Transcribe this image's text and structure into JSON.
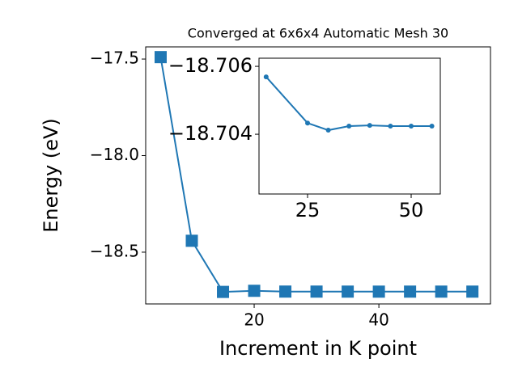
{
  "chart_data": [
    {
      "type": "line",
      "title": "Converged at 6x6x4 Automatic Mesh 30",
      "xlabel": "Increment in K point",
      "ylabel": "Energy (eV)",
      "x": [
        5,
        10,
        15,
        20,
        25,
        30,
        35,
        40,
        45,
        50,
        55
      ],
      "series": [
        {
          "name": "Energy",
          "color": "#1f77b4",
          "marker": "square",
          "values": [
            -17.49,
            -18.441,
            -18.7057,
            -18.7,
            -18.704,
            -18.7041,
            -18.7042,
            -18.7043,
            -18.7042,
            -18.7042,
            -18.7042
          ]
        }
      ],
      "xlim": [
        2.6,
        57.9
      ],
      "xticks": [
        20,
        40
      ],
      "ylim": [
        -18.768,
        -17.437
      ],
      "yticks": [
        {
          "value": -17.5,
          "label": "−17.5"
        },
        {
          "value": -18.0,
          "label": "−18.0"
        },
        {
          "value": -18.5,
          "label": "−18.5"
        }
      ]
    },
    {
      "type": "line",
      "x": [
        15,
        25,
        30,
        35,
        40,
        45,
        50,
        55
      ],
      "series": [
        {
          "name": "Energy",
          "color": "#1f77b4",
          "marker": "circle",
          "values": [
            -18.70569,
            -18.70433,
            -18.70412,
            -18.70424,
            -18.70426,
            -18.70424,
            -18.70424,
            -18.70424
          ]
        }
      ],
      "xlim": [
        13.28,
        57.03
      ],
      "xticks": [
        25,
        50
      ],
      "ylim": [
        -18.70224,
        -18.70624
      ],
      "yticks": [
        {
          "value": -18.706,
          "label": "−18.706"
        },
        {
          "value": -18.704,
          "label": "−18.704"
        }
      ]
    }
  ]
}
